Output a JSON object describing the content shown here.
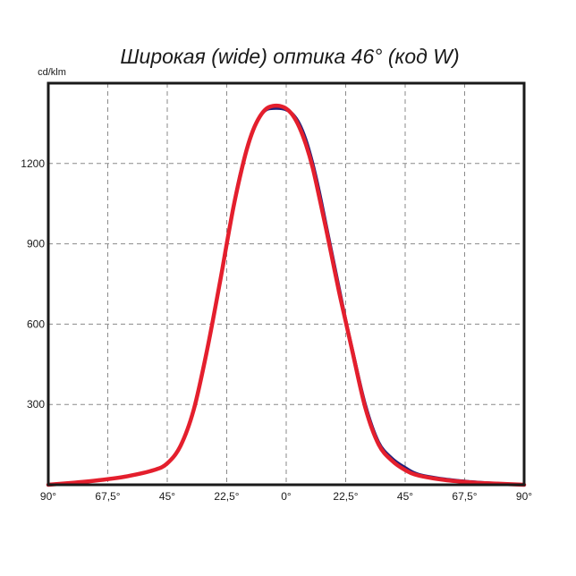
{
  "chart_data": {
    "type": "line",
    "title": "Широкая (wide) оптика 46° (код W)",
    "ylabel": "cd/klm",
    "xlabel": "",
    "x_tick_labels": [
      "90°",
      "67,5°",
      "45°",
      "22,5°",
      "0°",
      "22,5°",
      "45°",
      "67,5°",
      "90°"
    ],
    "x_ticks": [
      -90,
      -67.5,
      -45,
      -22.5,
      0,
      22.5,
      45,
      67.5,
      90
    ],
    "y_tick_labels": [
      "300",
      "600",
      "900",
      "1200"
    ],
    "y_ticks": [
      300,
      600,
      900,
      1200
    ],
    "xlim": [
      -90,
      90
    ],
    "ylim": [
      0,
      1500
    ],
    "grid": true,
    "series": [
      {
        "color": "#1f1f7a",
        "x": [
          -90,
          -80,
          -70,
          -60,
          -50,
          -45,
          -40,
          -35,
          -30,
          -25,
          -22.5,
          -20,
          -17.5,
          -15,
          -12.5,
          -10,
          -7.5,
          -5,
          -2.5,
          0,
          2.5,
          5,
          7.5,
          10,
          12.5,
          15,
          17.5,
          20,
          22.5,
          25,
          30,
          35,
          40,
          45,
          50,
          60,
          70,
          80,
          90
        ],
        "values": [
          0,
          8,
          18,
          32,
          55,
          80,
          145,
          280,
          500,
          760,
          900,
          1040,
          1160,
          1255,
          1330,
          1375,
          1400,
          1405,
          1405,
          1400,
          1385,
          1350,
          1290,
          1205,
          1100,
          980,
          860,
          740,
          620,
          510,
          300,
          160,
          100,
          65,
          40,
          22,
          12,
          5,
          0
        ]
      },
      {
        "color": "#e41f2d",
        "x": [
          -90,
          -80,
          -70,
          -60,
          -50,
          -45,
          -40,
          -35,
          -30,
          -25,
          -22.5,
          -20,
          -17.5,
          -15,
          -12.5,
          -10,
          -7.5,
          -5,
          -2.5,
          0,
          2.5,
          5,
          7.5,
          10,
          12.5,
          15,
          17.5,
          20,
          22.5,
          25,
          30,
          35,
          40,
          45,
          50,
          60,
          70,
          80,
          90
        ],
        "values": [
          0,
          8,
          18,
          32,
          55,
          80,
          145,
          280,
          500,
          760,
          900,
          1035,
          1150,
          1250,
          1325,
          1375,
          1405,
          1415,
          1415,
          1405,
          1380,
          1335,
          1270,
          1185,
          1075,
          960,
          840,
          720,
          610,
          500,
          285,
          150,
          90,
          55,
          35,
          18,
          9,
          4,
          0
        ]
      }
    ]
  }
}
